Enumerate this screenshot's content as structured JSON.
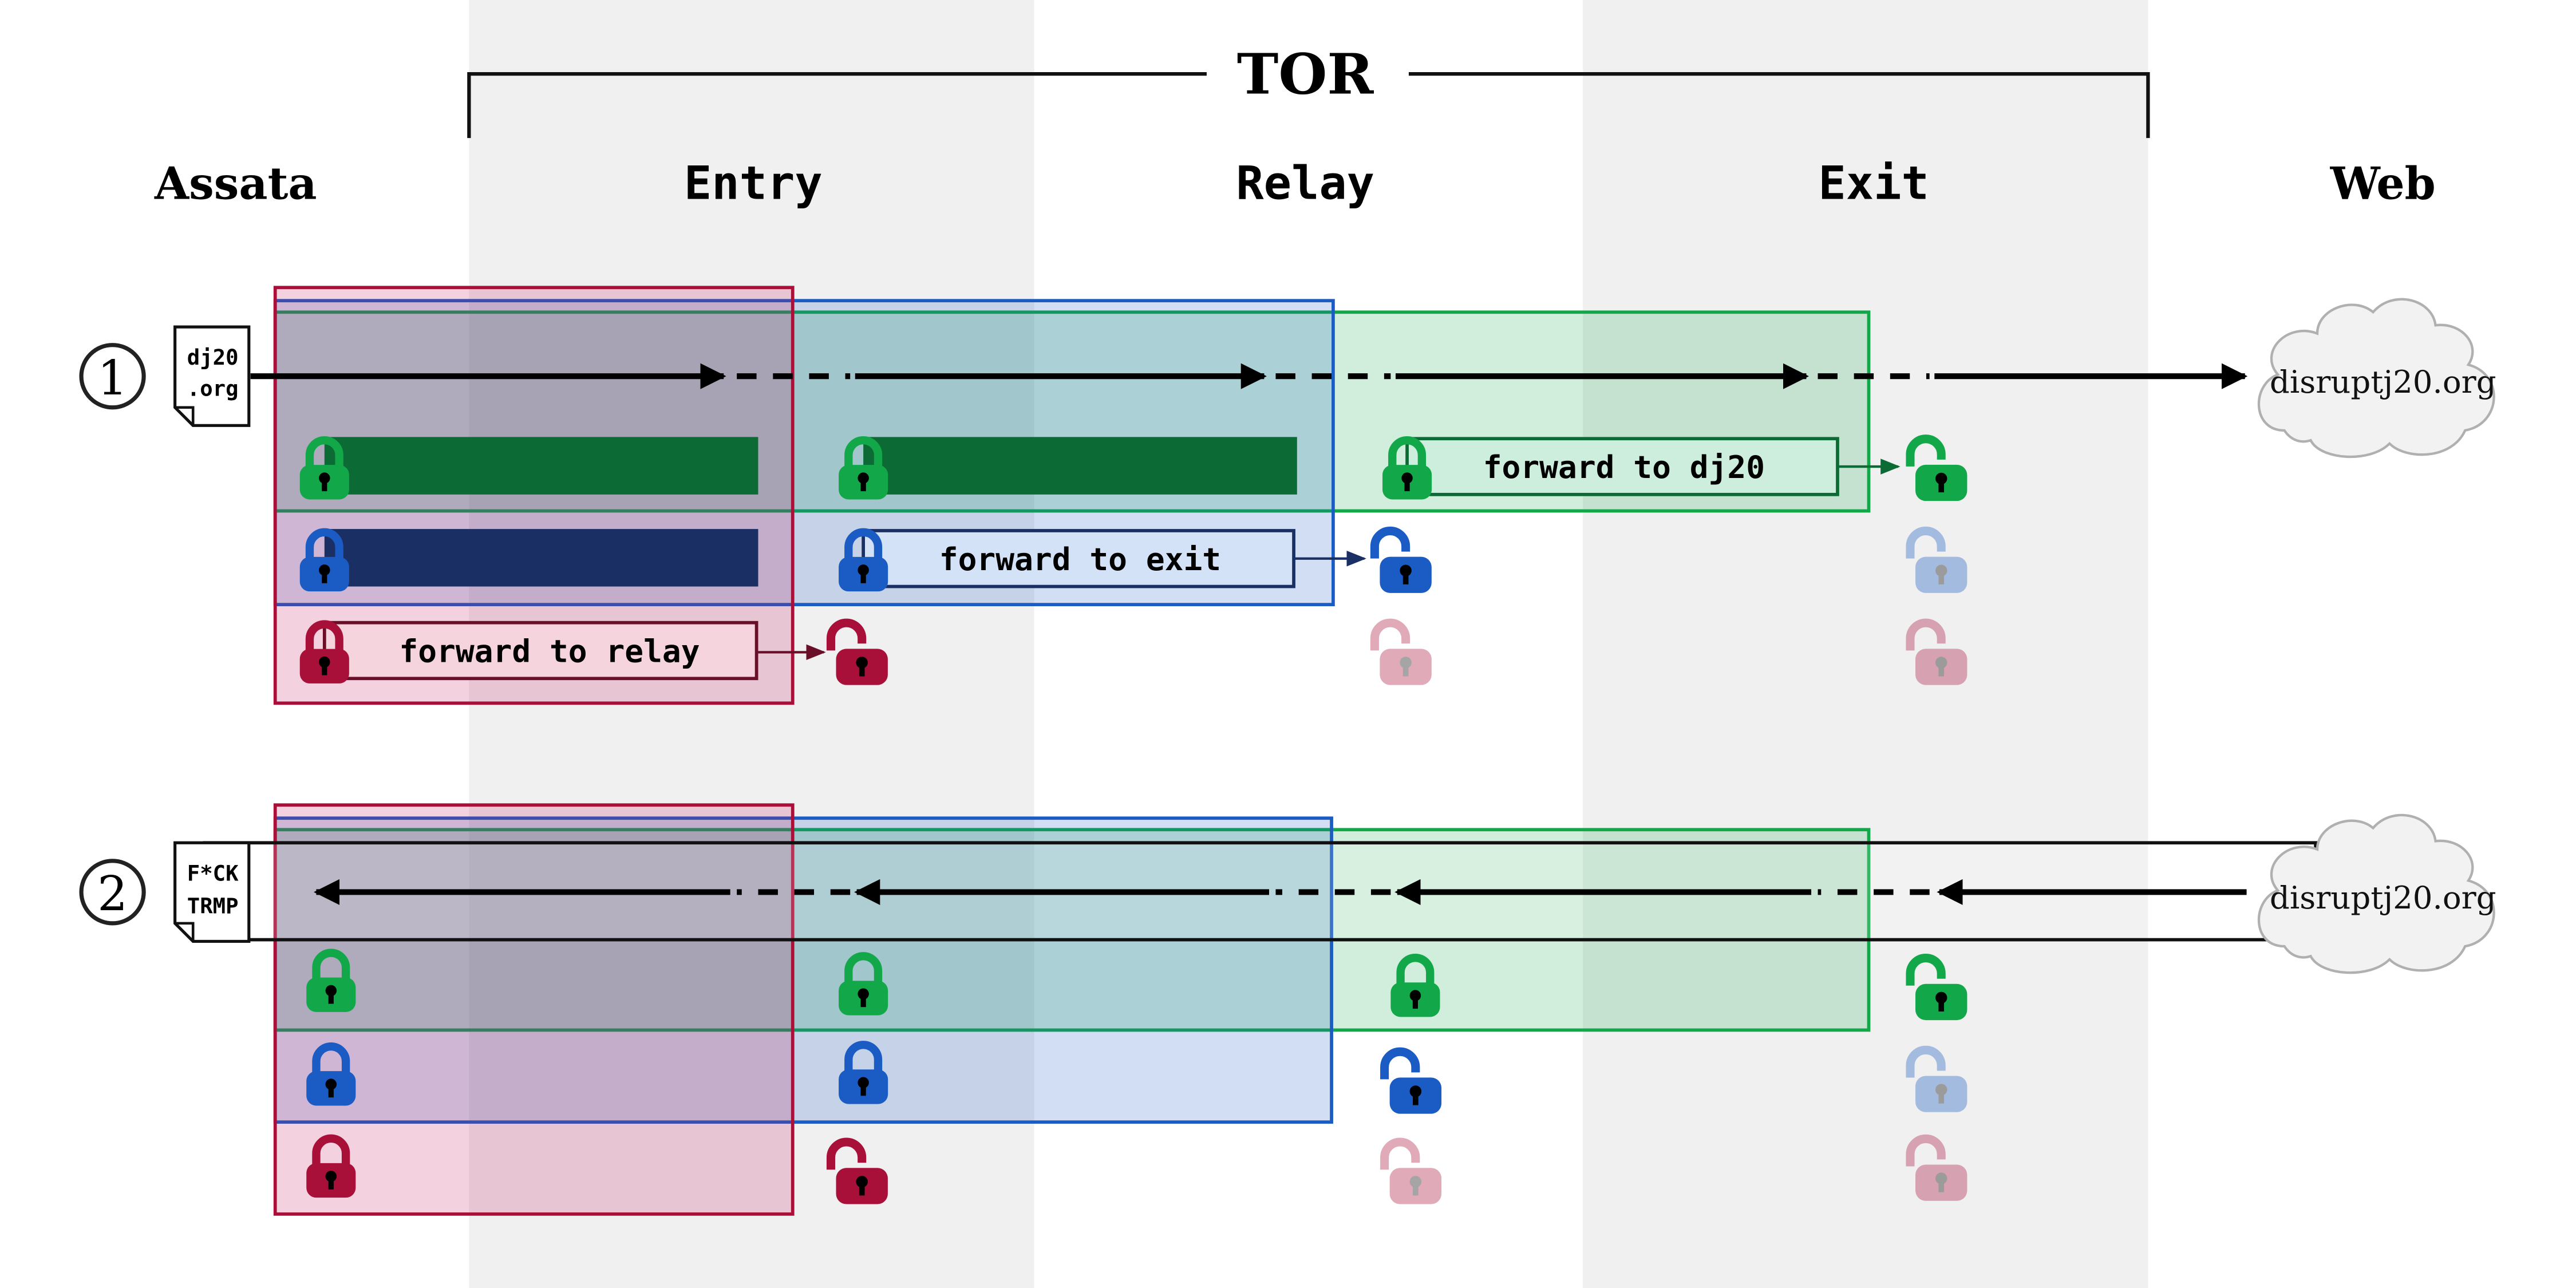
{
  "title": "TOR",
  "columns": {
    "assata": "Assata",
    "entry": "Entry",
    "relay": "Relay",
    "exit": "Exit",
    "web": "Web"
  },
  "steps": [
    {
      "number": "1",
      "doc_line1": "dj20",
      "doc_line2": ".org",
      "cloud": "disruptj20.org"
    },
    {
      "number": "2",
      "doc_line1": "F*CK",
      "doc_line2": "TRMP",
      "cloud": "disruptj20.org"
    }
  ],
  "instructions": {
    "exit": "forward to dj20",
    "relay": "forward to exit",
    "entry": "forward to relay"
  },
  "colors": {
    "green": "#12a84a",
    "green_dark": "#0c6b34",
    "blue": "#1a5bc4",
    "blue_dark": "#1a2f63",
    "red": "#a8103a",
    "stripe": "#f0f0f0"
  }
}
